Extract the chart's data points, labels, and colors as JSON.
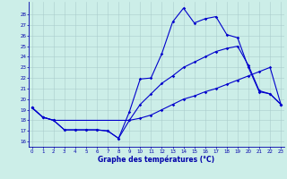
{
  "title": "Graphe des températures (°C)",
  "bg_color": "#cceee8",
  "line_color": "#0000cc",
  "grid_color": "#aacccc",
  "ylim": [
    15.5,
    29.2
  ],
  "yticks": [
    16,
    17,
    18,
    19,
    20,
    21,
    22,
    23,
    24,
    25,
    26,
    27,
    28
  ],
  "xlim": [
    -0.3,
    23.3
  ],
  "xticks": [
    0,
    1,
    2,
    3,
    4,
    5,
    6,
    7,
    8,
    9,
    10,
    11,
    12,
    13,
    14,
    15,
    16,
    17,
    18,
    19,
    20,
    21,
    22,
    23
  ],
  "line1_x": [
    0,
    1,
    2,
    3,
    4,
    5,
    6,
    7,
    8,
    9,
    10,
    11,
    12,
    13,
    14,
    15,
    16,
    17,
    18,
    19,
    20,
    21,
    22,
    23
  ],
  "line1_y": [
    19.2,
    18.3,
    18.0,
    17.1,
    17.1,
    17.1,
    17.1,
    17.0,
    16.3,
    18.8,
    21.9,
    22.0,
    24.3,
    27.3,
    28.6,
    27.2,
    27.6,
    27.8,
    26.1,
    25.8,
    23.0,
    20.7,
    20.5,
    19.5
  ],
  "line2_x": [
    0,
    1,
    2,
    3,
    4,
    5,
    6,
    7,
    8,
    9,
    10,
    11,
    12,
    13,
    14,
    15,
    16,
    17,
    18,
    19,
    20,
    21,
    22,
    23
  ],
  "line2_y": [
    19.2,
    18.3,
    18.0,
    17.1,
    17.1,
    17.1,
    17.1,
    17.0,
    16.3,
    18.0,
    19.5,
    20.5,
    21.5,
    22.2,
    23.0,
    23.5,
    24.0,
    24.5,
    24.8,
    25.0,
    23.2,
    20.8,
    20.5,
    19.5
  ],
  "line3_x": [
    0,
    1,
    2,
    9,
    10,
    11,
    12,
    13,
    14,
    15,
    16,
    17,
    18,
    19,
    20,
    21,
    22,
    23
  ],
  "line3_y": [
    19.2,
    18.3,
    18.0,
    18.0,
    18.2,
    18.5,
    19.0,
    19.5,
    20.0,
    20.3,
    20.7,
    21.0,
    21.4,
    21.8,
    22.2,
    22.6,
    23.0,
    19.5
  ]
}
